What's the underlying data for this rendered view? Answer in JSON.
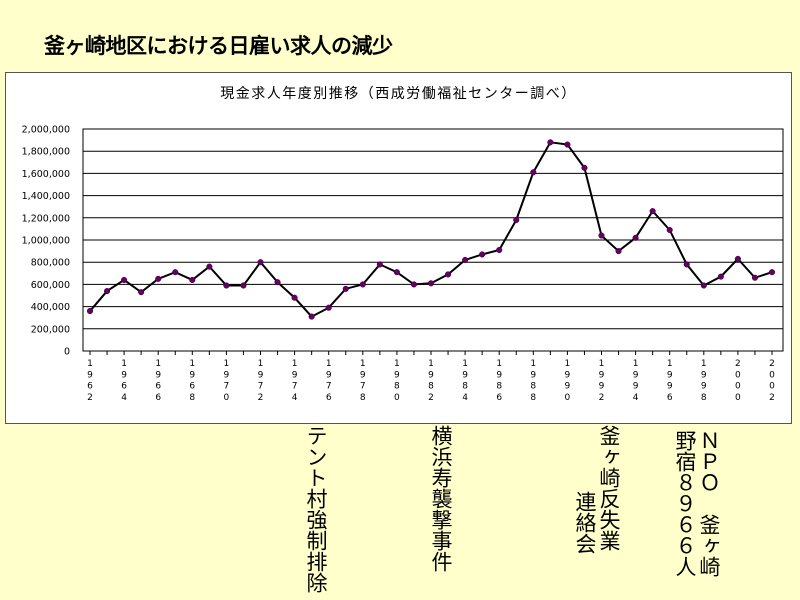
{
  "slide_title": "釜ヶ崎地区における日雇い求人の減少",
  "chart_data": {
    "type": "line",
    "title": "現金求人年度別推移（西成労働福祉センター調べ）",
    "x": [
      "1962",
      "1963",
      "1964",
      "1965",
      "1966",
      "1967",
      "1968",
      "1969",
      "1970",
      "1971",
      "1972",
      "1973",
      "1974",
      "1975",
      "1976",
      "1977",
      "1978",
      "1979",
      "1980",
      "1981",
      "1982",
      "1983",
      "1984",
      "1985",
      "1986",
      "1987",
      "1988",
      "1989",
      "1990",
      "1991",
      "1992",
      "1993",
      "1994",
      "1995",
      "1996",
      "1997",
      "1998",
      "1999",
      "2000",
      "2001",
      "2002"
    ],
    "x_tick_labels": [
      "1962",
      "1964",
      "1966",
      "1968",
      "1970",
      "1972",
      "1974",
      "1976",
      "1978",
      "1980",
      "1982",
      "1984",
      "1986",
      "1988",
      "1990",
      "1992",
      "1994",
      "1996",
      "1998",
      "2000",
      "2002"
    ],
    "series": [
      {
        "values": [
          360000,
          540000,
          640000,
          530000,
          650000,
          710000,
          640000,
          760000,
          590000,
          590000,
          800000,
          620000,
          480000,
          310000,
          390000,
          560000,
          600000,
          780000,
          710000,
          600000,
          610000,
          690000,
          820000,
          870000,
          910000,
          1180000,
          1610000,
          1880000,
          1860000,
          1650000,
          1040000,
          900000,
          1020000,
          1260000,
          1090000,
          780000,
          590000,
          670000,
          830000,
          660000,
          710000
        ]
      }
    ],
    "y_tick_labels": [
      "2,000,000",
      "1,800,000",
      "1,600,000",
      "1,400,000",
      "1,200,000",
      "1,000,000",
      "800,000",
      "600,000",
      "400,000",
      "200,000",
      "0"
    ],
    "ylim": [
      0,
      2000000
    ],
    "grid": true,
    "legend": "none",
    "colors": {
      "line": "#000000",
      "marker": "#660066"
    }
  },
  "annotations": [
    {
      "text": "テント村強制排除",
      "year": "1976"
    },
    {
      "text": "横浜寿襲撃事件",
      "year": "1983"
    },
    {
      "text": "釜ヶ崎反失業\n 　　連絡会",
      "year": "1993"
    },
    {
      "text": "ＮＰＯ　釜ヶ崎\n野宿８９６６人",
      "year": "1998"
    }
  ]
}
